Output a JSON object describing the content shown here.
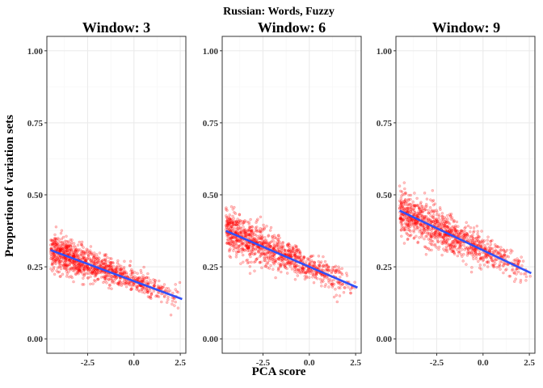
{
  "figure": {
    "title": "Russian: Words, Fuzzy",
    "xlabel": "PCA score",
    "ylabel": "Proportion of variation sets"
  },
  "colors": {
    "points": "#ff0000",
    "fit_line": "#3050f8",
    "panel_border": "#333333",
    "grid_major": "#ebebeb",
    "grid_minor": "#f5f5f5"
  },
  "chart_data": [
    {
      "type": "scatter",
      "title": "Window: 3",
      "xlim": [
        -4.7,
        2.8
      ],
      "ylim": [
        -0.05,
        1.05
      ],
      "x_ticks": [
        -2.5,
        0.0,
        2.5
      ],
      "x_tick_labels": [
        "-2.5",
        "0.0",
        "2.5"
      ],
      "y_ticks": [
        0.0,
        0.25,
        0.5,
        0.75,
        1.0
      ],
      "y_tick_labels": [
        "0.00",
        "0.25",
        "0.50",
        "0.75",
        "1.00"
      ],
      "grid": true,
      "points_summary": {
        "x_range": [
          -4.5,
          2.6
        ],
        "n_approx": 1100,
        "noise_sd": 0.02
      },
      "fit": {
        "x": [
          -4.5,
          2.6
        ],
        "y": [
          0.308,
          0.138
        ]
      }
    },
    {
      "type": "scatter",
      "title": "Window: 6",
      "xlim": [
        -4.7,
        2.8
      ],
      "ylim": [
        -0.05,
        1.05
      ],
      "x_ticks": [
        -2.5,
        0.0,
        2.5
      ],
      "x_tick_labels": [
        "-2.5",
        "0.0",
        "2.5"
      ],
      "y_ticks": [
        0.0,
        0.25,
        0.5,
        0.75,
        1.0
      ],
      "y_tick_labels": [
        "0.00",
        "0.25",
        "0.50",
        "0.75",
        "1.00"
      ],
      "grid": true,
      "points_summary": {
        "x_range": [
          -4.5,
          2.6
        ],
        "n_approx": 1100,
        "noise_sd": 0.024
      },
      "fit": {
        "x": [
          -4.5,
          2.6
        ],
        "y": [
          0.375,
          0.178
        ]
      }
    },
    {
      "type": "scatter",
      "title": "Window: 9",
      "xlim": [
        -4.7,
        2.8
      ],
      "ylim": [
        -0.05,
        1.05
      ],
      "x_ticks": [
        -2.5,
        0.0,
        2.5
      ],
      "x_tick_labels": [
        "-2.5",
        "0.0",
        "2.5"
      ],
      "y_ticks": [
        0.0,
        0.25,
        0.5,
        0.75,
        1.0
      ],
      "y_tick_labels": [
        "0.00",
        "0.25",
        "0.50",
        "0.75",
        "1.00"
      ],
      "grid": true,
      "points_summary": {
        "x_range": [
          -4.5,
          2.6
        ],
        "n_approx": 1100,
        "noise_sd": 0.026
      },
      "fit": {
        "x": [
          -4.5,
          2.6
        ],
        "y": [
          0.445,
          0.228
        ]
      }
    }
  ]
}
